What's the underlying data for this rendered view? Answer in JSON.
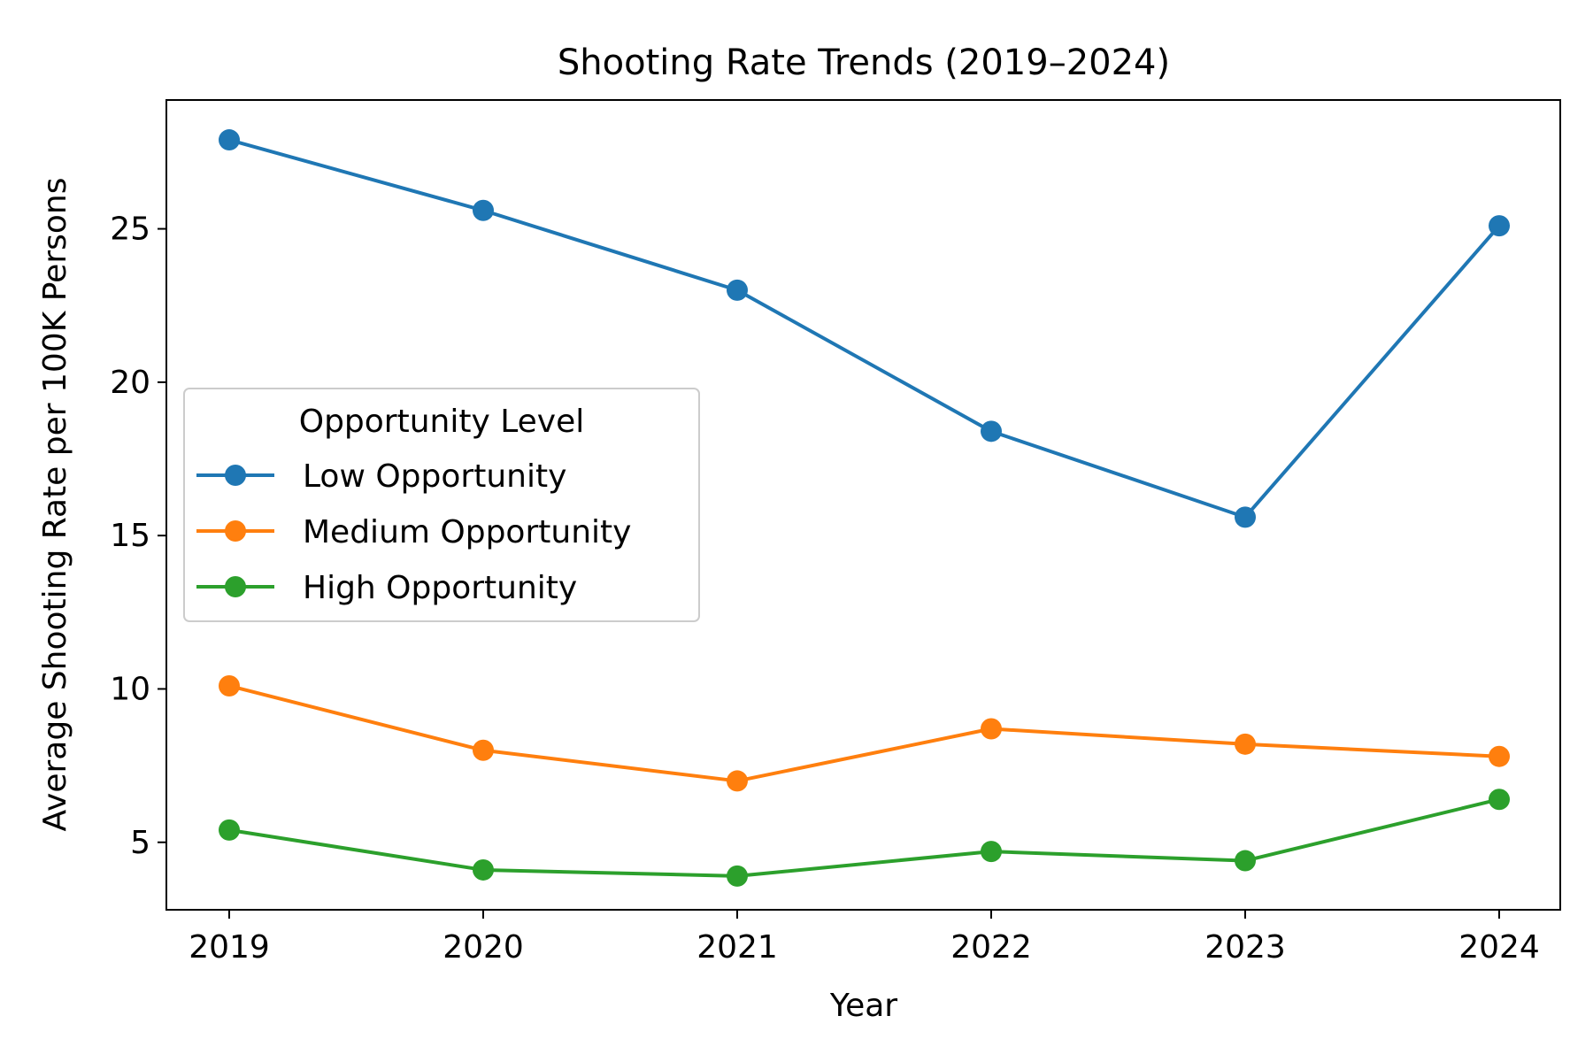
{
  "chart_data": {
    "type": "line",
    "title": "Shooting Rate Trends (2019–2024)",
    "xlabel": "Year",
    "ylabel": "Average Shooting Rate per 100K Persons",
    "x": [
      2019,
      2020,
      2021,
      2022,
      2023,
      2024
    ],
    "x_tick_labels": [
      "2019",
      "2020",
      "2021",
      "2022",
      "2023",
      "2024"
    ],
    "y_ticks": [
      5,
      10,
      15,
      20,
      25
    ],
    "ylim": [
      2.8,
      29.2
    ],
    "grid": false,
    "legend": {
      "title": "Opportunity Level",
      "placement": "center-left"
    },
    "series": [
      {
        "name": "Low Opportunity",
        "color": "#1f77b4",
        "marker": "circle",
        "values": [
          27.9,
          25.6,
          23.0,
          18.4,
          15.6,
          25.1
        ]
      },
      {
        "name": "Medium Opportunity",
        "color": "#ff7f0e",
        "marker": "circle",
        "values": [
          10.1,
          8.0,
          7.0,
          8.7,
          8.2,
          7.8
        ]
      },
      {
        "name": "High Opportunity",
        "color": "#2ca02c",
        "marker": "circle",
        "values": [
          5.4,
          4.1,
          3.9,
          4.7,
          4.4,
          6.4
        ]
      }
    ]
  }
}
